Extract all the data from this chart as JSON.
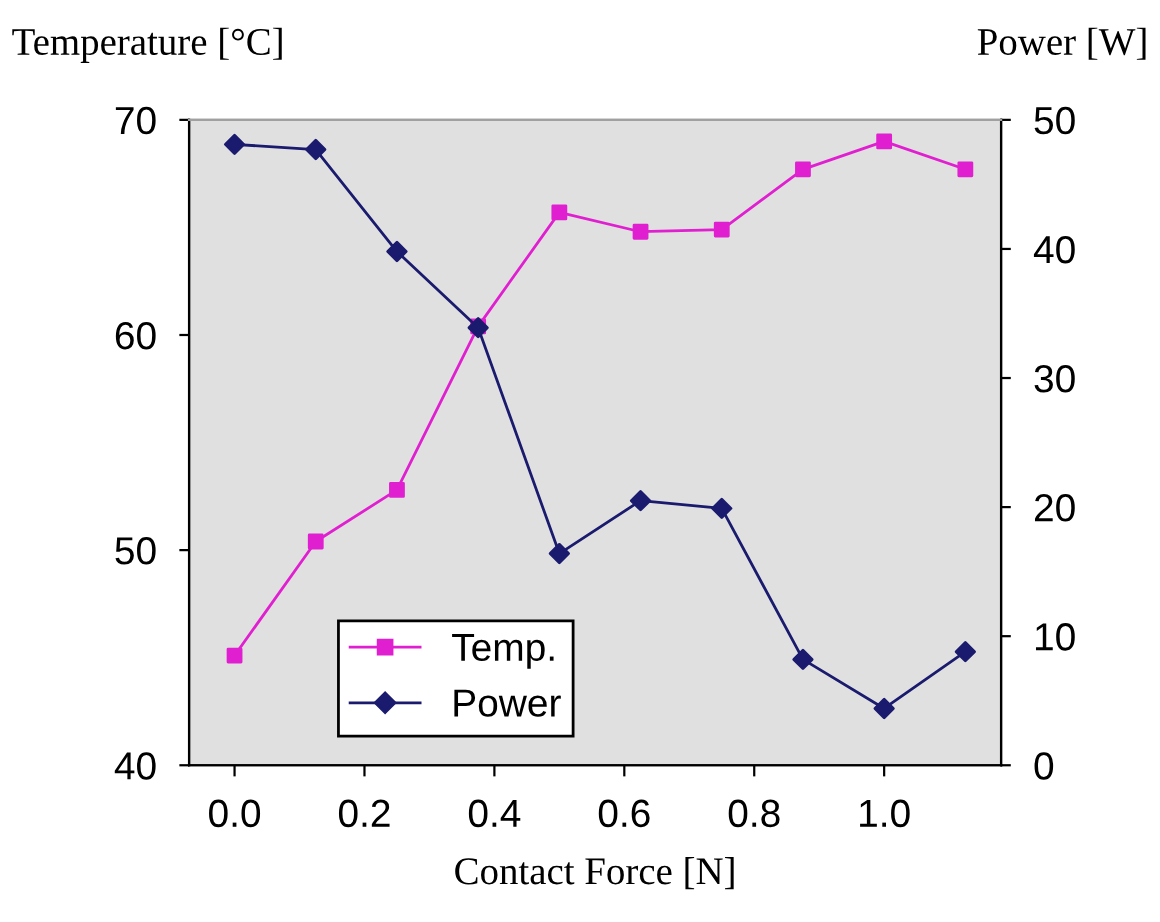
{
  "chart_data": {
    "type": "line",
    "xlabel": "Contact Force [N]",
    "ylabel": "Temperature [°C]",
    "y2label": "Power [W]",
    "x": [
      0,
      0.125,
      0.25,
      0.375,
      0.5,
      0.625,
      0.75,
      0.875,
      1.0,
      1.125
    ],
    "series": [
      {
        "name": "Temp.",
        "color": "#e020d0",
        "marker": "square",
        "values": [
          45.1,
          50.4,
          52.8,
          60.4,
          65.7,
          64.8,
          64.9,
          67.7,
          69.0,
          67.7
        ]
      },
      {
        "name": "Power",
        "color": "#1a1a6e",
        "marker": "diamond",
        "axis": "y2",
        "values": [
          48.1,
          47.7,
          39.8,
          33.9,
          16.4,
          20.5,
          19.9,
          8.2,
          4.4,
          8.8
        ]
      }
    ],
    "xlim": [
      -0.07,
      1.18
    ],
    "xticks": [
      {
        "value": 0,
        "label": "0.0"
      },
      {
        "value": 0.2,
        "label": "0.2"
      },
      {
        "value": 0.4,
        "label": "0.4"
      },
      {
        "value": 0.6,
        "label": "0.6"
      },
      {
        "value": 0.8,
        "label": "0.8"
      },
      {
        "value": 1.0,
        "label": "1.0"
      }
    ],
    "ylim": [
      40,
      70
    ],
    "yticks": [
      40,
      50,
      60,
      70
    ],
    "y2lim": [
      0,
      50
    ],
    "y2ticks": [
      0,
      10,
      20,
      30,
      40,
      50
    ],
    "grid": false,
    "legend": "bottom left",
    "line_style": "solid"
  }
}
